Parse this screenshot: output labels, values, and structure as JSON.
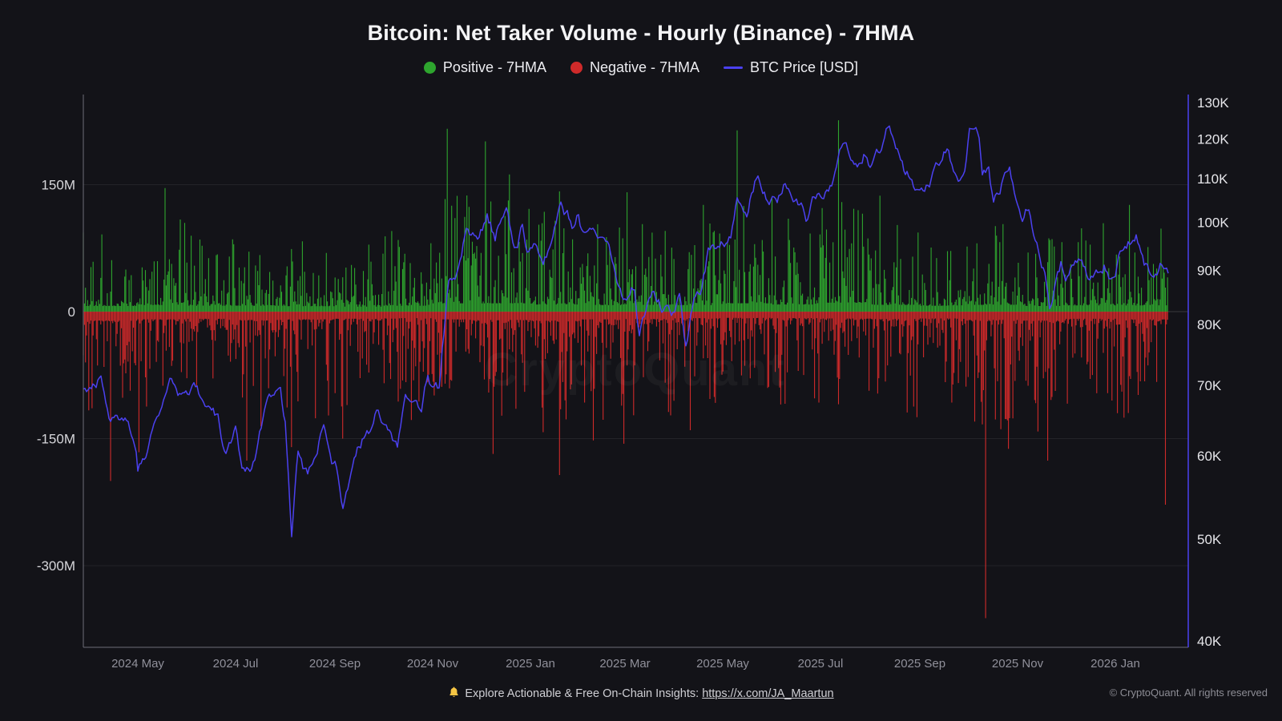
{
  "page": {
    "background": "#131318"
  },
  "title": "Bitcoin: Net Taker Volume - Hourly (Binance) - 7HMA",
  "legend": {
    "items": [
      {
        "label": "Positive - 7HMA",
        "color": "#2ea52e",
        "marker": "dot"
      },
      {
        "label": "Negative - 7HMA",
        "color": "#cf2a2a",
        "marker": "dot"
      },
      {
        "label": "BTC Price [USD]",
        "color": "#4b41f0",
        "marker": "line"
      }
    ]
  },
  "watermark": "CryptoQuant",
  "footer": {
    "icon": "bell-icon",
    "prompt": "Explore Actionable & Free On-Chain Insights:",
    "link_text": "https://x.com/JA_Maartun",
    "copyright": "© CryptoQuant. All rights reserved"
  },
  "chart_data": {
    "type": "bar",
    "subtype": "dual-axis bars with overlaid line",
    "title": "Bitcoin: Net Taker Volume - Hourly (Binance) - 7HMA",
    "grid": "horizontal-only",
    "legend_position": "top-center",
    "series": [
      {
        "name": "Positive - 7HMA",
        "kind": "bar",
        "direction": "up",
        "axis": "left",
        "color": "#2ea52e"
      },
      {
        "name": "Negative - 7HMA",
        "kind": "bar",
        "direction": "down",
        "axis": "left",
        "color": "#cf2a2a"
      },
      {
        "name": "BTC Price [USD]",
        "kind": "line",
        "axis": "right",
        "color": "#4b41f0"
      }
    ],
    "left_axis": {
      "unit": "net taker volume (USD, millions)",
      "scale": "linear",
      "range_shown": [
        -390,
        240
      ],
      "ticks": [
        {
          "label": "150M",
          "value": 150
        },
        {
          "label": "0",
          "value": 0
        },
        {
          "label": "-150M",
          "value": -150
        },
        {
          "label": "-300M",
          "value": -300
        }
      ]
    },
    "right_axis": {
      "unit": "BTC price (USD)",
      "scale": "log",
      "ticks": [
        {
          "label": "130K",
          "value": 130000
        },
        {
          "label": "120K",
          "value": 120000
        },
        {
          "label": "110K",
          "value": 110000
        },
        {
          "label": "100K",
          "value": 100000
        },
        {
          "label": "90K",
          "value": 90000
        },
        {
          "label": "80K",
          "value": 80000
        },
        {
          "label": "70K",
          "value": 70000
        },
        {
          "label": "60K",
          "value": 60000
        },
        {
          "label": "50K",
          "value": 50000
        },
        {
          "label": "40K",
          "value": 40000
        }
      ]
    },
    "x_axis": {
      "start_date": "2024-03-28",
      "end_date": "2026-02-02",
      "total_days": 677,
      "ticks": [
        {
          "label": "2024 May",
          "day": 34
        },
        {
          "label": "2024 Jul",
          "day": 95
        },
        {
          "label": "2024 Sep",
          "day": 157
        },
        {
          "label": "2024 Nov",
          "day": 218
        },
        {
          "label": "2025 Jan",
          "day": 279
        },
        {
          "label": "2025 Mar",
          "day": 338
        },
        {
          "label": "2025 May",
          "day": 399
        },
        {
          "label": "2025 Jul",
          "day": 460
        },
        {
          "label": "2025 Sep",
          "day": 522
        },
        {
          "label": "2025 Nov",
          "day": 583
        },
        {
          "label": "2026 Jan",
          "day": 644
        }
      ]
    },
    "btc_price_points_day_usdK": [
      [
        0,
        69.5
      ],
      [
        4,
        69.6
      ],
      [
        11,
        71.6
      ],
      [
        16,
        63.9
      ],
      [
        23,
        64.9
      ],
      [
        30,
        63.0
      ],
      [
        33,
        60.6
      ],
      [
        34,
        58.4
      ],
      [
        41,
        61.2
      ],
      [
        48,
        66.2
      ],
      [
        54,
        71.4
      ],
      [
        58,
        69.0
      ],
      [
        64,
        67.5
      ],
      [
        71,
        69.3
      ],
      [
        78,
        66.0
      ],
      [
        84,
        64.8
      ],
      [
        88,
        60.2
      ],
      [
        92,
        61.0
      ],
      [
        95,
        62.8
      ],
      [
        99,
        56.6
      ],
      [
        104,
        58.0
      ],
      [
        107,
        59.2
      ],
      [
        112,
        64.0
      ],
      [
        116,
        67.9
      ],
      [
        123,
        69.9
      ],
      [
        126,
        64.6
      ],
      [
        130,
        50.5
      ],
      [
        134,
        60.9
      ],
      [
        137,
        58.8
      ],
      [
        140,
        57.1
      ],
      [
        146,
        59.4
      ],
      [
        150,
        64.2
      ],
      [
        155,
        59.0
      ],
      [
        157,
        59.1
      ],
      [
        162,
        53.9
      ],
      [
        169,
        60.5
      ],
      [
        176,
        63.2
      ],
      [
        180,
        63.0
      ],
      [
        183,
        65.8
      ],
      [
        187,
        63.3
      ],
      [
        190,
        62.1
      ],
      [
        196,
        60.3
      ],
      [
        201,
        67.0
      ],
      [
        206,
        68.4
      ],
      [
        211,
        67.0
      ],
      [
        215,
        72.7
      ],
      [
        219,
        69.9
      ],
      [
        222,
        69.3
      ],
      [
        224,
        75.6
      ],
      [
        228,
        88.7
      ],
      [
        232,
        90.5
      ],
      [
        234,
        91.0
      ],
      [
        239,
        98.9
      ],
      [
        243,
        97.7
      ],
      [
        247,
        96.4
      ],
      [
        252,
        101.1
      ],
      [
        257,
        96.6
      ],
      [
        264,
        106.1
      ],
      [
        268,
        97.5
      ],
      [
        271,
        94.3
      ],
      [
        274,
        98.8
      ],
      [
        277,
        92.6
      ],
      [
        282,
        96.9
      ],
      [
        287,
        92.5
      ],
      [
        292,
        94.7
      ],
      [
        298,
        104.7
      ],
      [
        302,
        102.1
      ],
      [
        305,
        99.0
      ],
      [
        309,
        102.0
      ],
      [
        312,
        97.7
      ],
      [
        318,
        96.1
      ],
      [
        323,
        97.5
      ],
      [
        328,
        96.0
      ],
      [
        334,
        88.6
      ],
      [
        337,
        84.3
      ],
      [
        341,
        84.0
      ],
      [
        344,
        86.0
      ],
      [
        347,
        78.5
      ],
      [
        352,
        83.0
      ],
      [
        356,
        86.8
      ],
      [
        361,
        83.7
      ],
      [
        365,
        84.3
      ],
      [
        369,
        82.5
      ],
      [
        372,
        85.2
      ],
      [
        376,
        76.6
      ],
      [
        381,
        84.0
      ],
      [
        385,
        84.6
      ],
      [
        390,
        93.4
      ],
      [
        394,
        94.0
      ],
      [
        399,
        96.5
      ],
      [
        404,
        97.0
      ],
      [
        408,
        104.1
      ],
      [
        414,
        102.7
      ],
      [
        420,
        111.7
      ],
      [
        424,
        109.0
      ],
      [
        428,
        105.6
      ],
      [
        433,
        105.0
      ],
      [
        438,
        110.2
      ],
      [
        444,
        105.4
      ],
      [
        448,
        103.9
      ],
      [
        451,
        100.9
      ],
      [
        455,
        105.8
      ],
      [
        459,
        107.1
      ],
      [
        464,
        108.3
      ],
      [
        468,
        111.3
      ],
      [
        473,
        119.8
      ],
      [
        478,
        117.5
      ],
      [
        484,
        115.8
      ],
      [
        488,
        118.0
      ],
      [
        491,
        113.4
      ],
      [
        496,
        116.5
      ],
      [
        503,
        124.3
      ],
      [
        508,
        117.3
      ],
      [
        512,
        112.4
      ],
      [
        516,
        111.0
      ],
      [
        519,
        108.4
      ],
      [
        523,
        111.0
      ],
      [
        527,
        110.3
      ],
      [
        532,
        112.5
      ],
      [
        539,
        117.5
      ],
      [
        543,
        112.0
      ],
      [
        546,
        109.2
      ],
      [
        550,
        114.0
      ],
      [
        553,
        122.5
      ],
      [
        557,
        126.1
      ],
      [
        559,
        121.5
      ],
      [
        561,
        110.9
      ],
      [
        565,
        113.5
      ],
      [
        568,
        104.9
      ],
      [
        572,
        108.0
      ],
      [
        575,
        111.0
      ],
      [
        578,
        114.5
      ],
      [
        582,
        107.5
      ],
      [
        586,
        101.3
      ],
      [
        590,
        103.5
      ],
      [
        596,
        94.6
      ],
      [
        600,
        90.0
      ],
      [
        603,
        83.9
      ],
      [
        607,
        88.0
      ],
      [
        610,
        91.2
      ],
      [
        613,
        87.2
      ],
      [
        617,
        90.0
      ],
      [
        622,
        91.6
      ],
      [
        627,
        87.5
      ],
      [
        632,
        88.0
      ],
      [
        637,
        90.5
      ],
      [
        643,
        88.5
      ],
      [
        646,
        92.0
      ],
      [
        649,
        95.0
      ],
      [
        653,
        96.5
      ],
      [
        657,
        97.5
      ],
      [
        660,
        94.0
      ],
      [
        662,
        92.0
      ],
      [
        666,
        89.5
      ],
      [
        668,
        90.5
      ],
      [
        672,
        91.5
      ],
      [
        677,
        88.3
      ]
    ],
    "volume_envelope_monthly": [
      {
        "start_day": 0,
        "pos": 95,
        "neg": 150
      },
      {
        "start_day": 34,
        "pos": 110,
        "neg": 130
      },
      {
        "start_day": 65,
        "pos": 100,
        "neg": 120
      },
      {
        "start_day": 95,
        "pos": 100,
        "neg": 140
      },
      {
        "start_day": 126,
        "pos": 90,
        "neg": 130
      },
      {
        "start_day": 157,
        "pos": 85,
        "neg": 120
      },
      {
        "start_day": 187,
        "pos": 100,
        "neg": 110
      },
      {
        "start_day": 218,
        "pos": 140,
        "neg": 130
      },
      {
        "start_day": 248,
        "pos": 140,
        "neg": 140
      },
      {
        "start_day": 279,
        "pos": 120,
        "neg": 150
      },
      {
        "start_day": 310,
        "pos": 110,
        "neg": 130
      },
      {
        "start_day": 338,
        "pos": 115,
        "neg": 125
      },
      {
        "start_day": 369,
        "pos": 110,
        "neg": 110
      },
      {
        "start_day": 399,
        "pos": 140,
        "neg": 105
      },
      {
        "start_day": 430,
        "pos": 120,
        "neg": 110
      },
      {
        "start_day": 460,
        "pos": 150,
        "neg": 115
      },
      {
        "start_day": 491,
        "pos": 115,
        "neg": 125
      },
      {
        "start_day": 522,
        "pos": 100,
        "neg": 115
      },
      {
        "start_day": 552,
        "pos": 115,
        "neg": 140
      },
      {
        "start_day": 583,
        "pos": 95,
        "neg": 150
      },
      {
        "start_day": 613,
        "pos": 105,
        "neg": 120
      },
      {
        "start_day": 644,
        "pos": 105,
        "neg": 130
      }
    ],
    "volume_spikes_positive_day_M": [
      [
        51,
        146
      ],
      [
        227,
        216
      ],
      [
        251,
        201
      ],
      [
        266,
        162
      ],
      [
        297,
        142
      ],
      [
        339,
        141
      ],
      [
        387,
        126
      ],
      [
        408,
        214
      ],
      [
        471,
        226
      ],
      [
        497,
        137
      ],
      [
        653,
        126
      ]
    ],
    "volume_spikes_negative_day_M": [
      [
        17,
        -200
      ],
      [
        35,
        -166
      ],
      [
        102,
        -176
      ],
      [
        130,
        -160
      ],
      [
        162,
        -150
      ],
      [
        205,
        -128
      ],
      [
        256,
        -168
      ],
      [
        297,
        -193
      ],
      [
        318,
        -152
      ],
      [
        337,
        -156
      ],
      [
        379,
        -140
      ],
      [
        563,
        -362
      ],
      [
        577,
        -162
      ],
      [
        602,
        -176
      ],
      [
        645,
        -120
      ],
      [
        675,
        -228
      ]
    ]
  }
}
